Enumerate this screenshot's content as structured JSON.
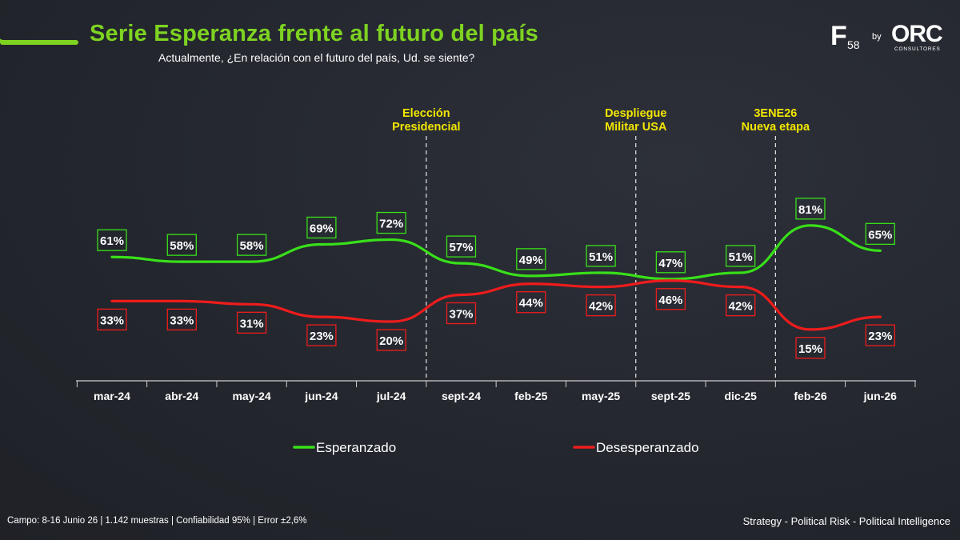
{
  "header": {
    "title": "Serie Esperanza frente al futuro del país",
    "subtitle": "Actualmente, ¿En relación con el futuro del país, Ud. se siente?"
  },
  "logo": {
    "f": "F",
    "num": "58",
    "by": "by",
    "orc": "ORC",
    "consultores": "CONSULTORES"
  },
  "chart_data": {
    "type": "line",
    "title": "Serie Esperanza frente al futuro del país",
    "categories": [
      "mar-24",
      "abr-24",
      "may-24",
      "jun-24",
      "jul-24",
      "sept-24",
      "feb-25",
      "may-25",
      "sept-25",
      "dic-25",
      "feb-26",
      "jun-26"
    ],
    "series": [
      {
        "name": "Esperanzado",
        "color": "#39e01a",
        "values": [
          61,
          58,
          58,
          69,
          72,
          57,
          49,
          51,
          47,
          51,
          81,
          65
        ]
      },
      {
        "name": "Desesperanzado",
        "color": "#ee1c1c",
        "values": [
          33,
          33,
          31,
          23,
          20,
          37,
          44,
          42,
          46,
          42,
          15,
          23
        ]
      }
    ],
    "value_format": "percent",
    "annotations": [
      {
        "between": [
          "jul-24",
          "sept-24"
        ],
        "lines": [
          "Elección",
          "Presidencial"
        ]
      },
      {
        "between": [
          "may-25",
          "sept-25"
        ],
        "lines": [
          "Despliegue",
          "Militar USA"
        ]
      },
      {
        "between": [
          "dic-25",
          "feb-26"
        ],
        "lines": [
          "3ENE26",
          "Nueva etapa"
        ]
      }
    ],
    "annotation_color": "#f2e600",
    "legend_position": "bottom",
    "grid": false
  },
  "footer": {
    "left": "Campo: 8-16 Junio 26 | 1.142 muestras | Confiabilidad 95% | Error ±2,6%",
    "right": "Strategy - Political Risk - Political Intelligence"
  }
}
